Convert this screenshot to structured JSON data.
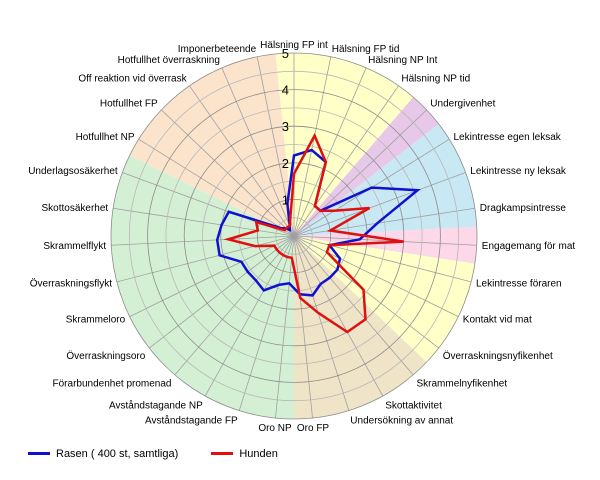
{
  "chart_data": {
    "type": "radar",
    "r_ticks": [
      "0",
      "1",
      "2",
      "3",
      "4",
      "5"
    ],
    "rmax": 5,
    "categories": [
      "Hälsning FP int",
      "Hälsning FP tid",
      "Hälsning NP Int",
      "Hälsning NP tid",
      "Undergivenhet",
      "Lekintresse egen leksak",
      "Lekintresse ny leksak",
      "Dragkampsintresse",
      "Engagemang för mat",
      "Lekintresse föraren",
      "Kontakt vid mat",
      "Överraskningsnyfikenhet",
      "Skrammelnyfikenhet",
      "Skottaktivitet",
      "Undersökning av annat",
      "Oro FP",
      "Oro NP",
      "Avståndstagande FP",
      "Avståndstagande NP",
      "Förarbundenhet promenad",
      "Överraskningsoro",
      "Skrammeloro",
      "Överraskningsflykt",
      "Skrammelflykt",
      "Skottosäkerhet",
      "Underlagsosäkerhet",
      "Hotfullhet NP",
      "Hotfullhet FP",
      "Off reaktion vid överrask",
      "Hotfullhet överraskning",
      "Imponerbeteende"
    ],
    "sectors": [
      {
        "from": 0,
        "to": 3,
        "color": "#ffffc8"
      },
      {
        "from": 4,
        "to": 4,
        "color": "#e8c8e8"
      },
      {
        "from": 5,
        "to": 7,
        "color": "#c8e8f4"
      },
      {
        "from": 8,
        "to": 8,
        "color": "#fcd8e8"
      },
      {
        "from": 9,
        "to": 11,
        "color": "#ffffc8"
      },
      {
        "from": 12,
        "to": 15,
        "color": "#f0e4c8"
      },
      {
        "from": 16,
        "to": 25,
        "color": "#d4f0d4"
      },
      {
        "from": 26,
        "to": 30,
        "color": "#fce4cc"
      }
    ],
    "series": [
      {
        "name": "Rasen ( 400 st, samtliga)",
        "color": "#1010d0",
        "values": [
          2.2,
          2.4,
          2.2,
          1.0,
          1.0,
          2.5,
          3.6,
          2.3,
          1.8,
          1.0,
          1.4,
          1.5,
          1.5,
          1.5,
          1.7,
          1.6,
          1.3,
          1.4,
          1.7,
          1.6,
          1.6,
          1.6,
          2.1,
          2.1,
          2.0,
          1.9,
          0.4,
          0.3,
          0.2,
          0.3,
          0.9
        ]
      },
      {
        "name": "Hunden",
        "color": "#e01010",
        "values": [
          1.7,
          2.8,
          2.2,
          1.0,
          1.0,
          1.3,
          2.2,
          1.0,
          3.0,
          1.0,
          1.0,
          2.4,
          3.0,
          3.0,
          2.2,
          1.7,
          0.6,
          0.6,
          0.6,
          0.6,
          0.6,
          0.6,
          1.1,
          1.8,
          1.0,
          1.1,
          0.3,
          0.3,
          0.3,
          0.3,
          0.5
        ]
      }
    ],
    "legend_position": "bottom-left"
  }
}
